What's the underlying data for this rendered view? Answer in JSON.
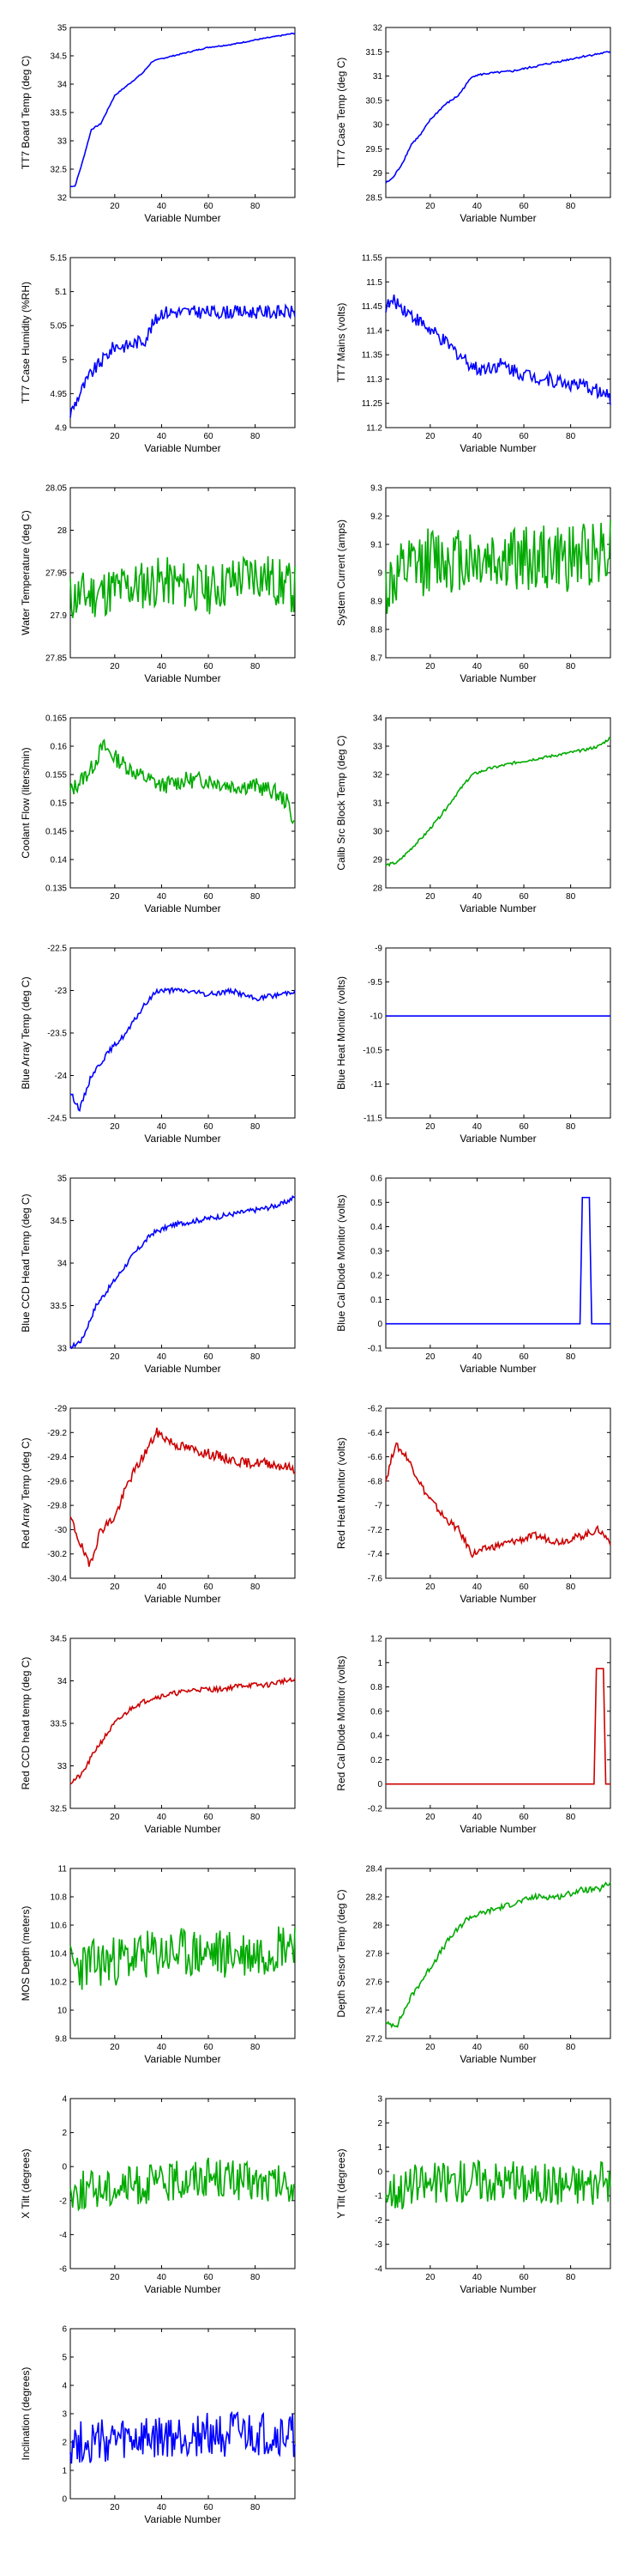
{
  "colors": {
    "blue": "#0000ff",
    "green": "#00aa00",
    "red": "#cc0000"
  },
  "x_range": [
    1,
    97
  ],
  "x_ticks": [
    20,
    40,
    60,
    80
  ],
  "chart_data": [
    {
      "type": "line",
      "ylabel": "TT7 Board Temp (deg C)",
      "xlabel": "Variable Number",
      "ylim": [
        32,
        35
      ],
      "yticks": [
        32,
        32.5,
        33,
        33.5,
        34,
        34.5,
        35
      ],
      "color": "blue",
      "anchors": [
        [
          1,
          32.2
        ],
        [
          3,
          32.2
        ],
        [
          6,
          32.6
        ],
        [
          10,
          33.2
        ],
        [
          14,
          33.3
        ],
        [
          20,
          33.8
        ],
        [
          26,
          34.0
        ],
        [
          32,
          34.2
        ],
        [
          36,
          34.4
        ],
        [
          40,
          34.45
        ],
        [
          50,
          34.55
        ],
        [
          60,
          34.65
        ],
        [
          70,
          34.7
        ],
        [
          80,
          34.78
        ],
        [
          90,
          34.85
        ],
        [
          97,
          34.9
        ]
      ],
      "noise": 0.01
    },
    {
      "type": "line",
      "ylabel": "TT7 Case Temp (deg C)",
      "xlabel": "Variable Number",
      "ylim": [
        28.5,
        32
      ],
      "yticks": [
        28.5,
        29,
        29.5,
        30,
        30.5,
        31,
        31.5,
        32
      ],
      "color": "blue",
      "anchors": [
        [
          1,
          28.8
        ],
        [
          4,
          28.9
        ],
        [
          8,
          29.2
        ],
        [
          12,
          29.6
        ],
        [
          16,
          29.8
        ],
        [
          20,
          30.1
        ],
        [
          26,
          30.4
        ],
        [
          32,
          30.6
        ],
        [
          38,
          31.0
        ],
        [
          44,
          31.05
        ],
        [
          55,
          31.1
        ],
        [
          65,
          31.2
        ],
        [
          75,
          31.3
        ],
        [
          85,
          31.4
        ],
        [
          97,
          31.5
        ]
      ],
      "noise": 0.02
    },
    {
      "type": "line",
      "ylabel": "TT7 Case Humidity (%RH)",
      "xlabel": "Variable Number",
      "ylim": [
        4.9,
        5.15
      ],
      "yticks": [
        4.9,
        4.95,
        5,
        5.05,
        5.1,
        5.15
      ],
      "color": "blue",
      "anchors": [
        [
          1,
          4.92
        ],
        [
          5,
          4.95
        ],
        [
          10,
          4.98
        ],
        [
          15,
          5.0
        ],
        [
          20,
          5.02
        ],
        [
          25,
          5.02
        ],
        [
          33,
          5.03
        ],
        [
          36,
          5.05
        ],
        [
          40,
          5.07
        ],
        [
          50,
          5.07
        ],
        [
          60,
          5.07
        ],
        [
          70,
          5.07
        ],
        [
          80,
          5.07
        ],
        [
          90,
          5.07
        ],
        [
          97,
          5.07
        ]
      ],
      "noise": 0.01
    },
    {
      "type": "line",
      "ylabel": "TT7 Mains (volts)",
      "xlabel": "Variable Number",
      "ylim": [
        11.2,
        11.55
      ],
      "yticks": [
        11.2,
        11.25,
        11.3,
        11.35,
        11.4,
        11.45,
        11.5,
        11.55
      ],
      "color": "blue",
      "anchors": [
        [
          1,
          11.45
        ],
        [
          5,
          11.46
        ],
        [
          10,
          11.44
        ],
        [
          15,
          11.42
        ],
        [
          20,
          11.4
        ],
        [
          25,
          11.38
        ],
        [
          30,
          11.36
        ],
        [
          35,
          11.34
        ],
        [
          40,
          11.32
        ],
        [
          50,
          11.33
        ],
        [
          60,
          11.31
        ],
        [
          70,
          11.3
        ],
        [
          80,
          11.29
        ],
        [
          90,
          11.28
        ],
        [
          97,
          11.26
        ]
      ],
      "noise": 0.015
    },
    {
      "type": "line",
      "ylabel": "Water Temperature (deg C)",
      "xlabel": "Variable Number",
      "ylim": [
        27.85,
        28.05
      ],
      "yticks": [
        27.85,
        27.9,
        27.95,
        28,
        28.05
      ],
      "color": "green",
      "anchors": [
        [
          1,
          27.92
        ],
        [
          20,
          27.93
        ],
        [
          40,
          27.94
        ],
        [
          60,
          27.93
        ],
        [
          80,
          27.95
        ],
        [
          97,
          27.93
        ]
      ],
      "noise": 0.03
    },
    {
      "type": "line",
      "ylabel": "System Current (amps)",
      "xlabel": "Variable Number",
      "ylim": [
        8.7,
        9.3
      ],
      "yticks": [
        8.7,
        8.8,
        8.9,
        9,
        9.1,
        9.2,
        9.3
      ],
      "color": "green",
      "anchors": [
        [
          1,
          8.95
        ],
        [
          20,
          9.05
        ],
        [
          40,
          9.05
        ],
        [
          60,
          9.05
        ],
        [
          80,
          9.05
        ],
        [
          97,
          9.1
        ]
      ],
      "noise": 0.12
    },
    {
      "type": "line",
      "ylabel": "Coolant Flow (liters/min)",
      "xlabel": "Variable Number",
      "ylim": [
        0.135,
        0.165
      ],
      "yticks": [
        0.135,
        0.14,
        0.145,
        0.15,
        0.155,
        0.16,
        0.165
      ],
      "color": "green",
      "anchors": [
        [
          1,
          0.152
        ],
        [
          10,
          0.156
        ],
        [
          15,
          0.16
        ],
        [
          20,
          0.158
        ],
        [
          30,
          0.155
        ],
        [
          40,
          0.153
        ],
        [
          50,
          0.154
        ],
        [
          60,
          0.154
        ],
        [
          70,
          0.153
        ],
        [
          80,
          0.153
        ],
        [
          88,
          0.152
        ],
        [
          94,
          0.15
        ],
        [
          97,
          0.146
        ]
      ],
      "noise": 0.0015
    },
    {
      "type": "line",
      "ylabel": "Calib Src Block Temp (deg C)",
      "xlabel": "Variable Number",
      "ylim": [
        28,
        34
      ],
      "yticks": [
        28,
        29,
        30,
        31,
        32,
        33,
        34
      ],
      "color": "green",
      "anchors": [
        [
          1,
          28.8
        ],
        [
          6,
          28.9
        ],
        [
          12,
          29.4
        ],
        [
          18,
          29.9
        ],
        [
          25,
          30.6
        ],
        [
          32,
          31.4
        ],
        [
          38,
          32.0
        ],
        [
          45,
          32.2
        ],
        [
          55,
          32.4
        ],
        [
          65,
          32.55
        ],
        [
          75,
          32.7
        ],
        [
          85,
          32.85
        ],
        [
          92,
          33.0
        ],
        [
          97,
          33.3
        ]
      ],
      "noise": 0.05
    },
    {
      "type": "line",
      "ylabel": "Blue Array Temp (deg C)",
      "xlabel": "Variable Number",
      "ylim": [
        -24.5,
        -22.5
      ],
      "yticks": [
        -24.5,
        -24,
        -23.5,
        -23,
        -22.5
      ],
      "color": "blue",
      "anchors": [
        [
          1,
          -24.2
        ],
        [
          5,
          -24.4
        ],
        [
          10,
          -24.0
        ],
        [
          18,
          -23.7
        ],
        [
          25,
          -23.5
        ],
        [
          32,
          -23.2
        ],
        [
          38,
          -23.0
        ],
        [
          50,
          -23.0
        ],
        [
          60,
          -23.05
        ],
        [
          70,
          -23.0
        ],
        [
          80,
          -23.1
        ],
        [
          90,
          -23.05
        ],
        [
          97,
          -23.0
        ]
      ],
      "noise": 0.03
    },
    {
      "type": "line",
      "ylabel": "Blue Heat Monitor (volts)",
      "xlabel": "Variable Number",
      "ylim": [
        -11.5,
        -9
      ],
      "yticks": [
        -11.5,
        -11,
        -10.5,
        -10,
        -9.5,
        -9
      ],
      "color": "blue",
      "anchors": [
        [
          1,
          -10
        ],
        [
          97,
          -10
        ]
      ],
      "noise": 0
    },
    {
      "type": "line",
      "ylabel": "Blue CCD Head Temp (deg C)",
      "xlabel": "Variable Number",
      "ylim": [
        33,
        35
      ],
      "yticks": [
        33,
        33.5,
        34,
        34.5,
        35
      ],
      "color": "blue",
      "anchors": [
        [
          1,
          33.0
        ],
        [
          6,
          33.1
        ],
        [
          12,
          33.5
        ],
        [
          20,
          33.8
        ],
        [
          28,
          34.1
        ],
        [
          36,
          34.35
        ],
        [
          45,
          34.45
        ],
        [
          55,
          34.5
        ],
        [
          65,
          34.55
        ],
        [
          75,
          34.6
        ],
        [
          85,
          34.65
        ],
        [
          92,
          34.7
        ],
        [
          97,
          34.78
        ]
      ],
      "noise": 0.03
    },
    {
      "type": "line",
      "ylabel": "Blue Cal Diode Monitor (volts)",
      "xlabel": "Variable Number",
      "ylim": [
        -0.1,
        0.6
      ],
      "yticks": [
        -0.1,
        0,
        0.1,
        0.2,
        0.3,
        0.4,
        0.5,
        0.6
      ],
      "color": "blue",
      "anchors": [
        [
          1,
          0
        ],
        [
          84,
          0
        ],
        [
          85,
          0.52
        ],
        [
          88,
          0.52
        ],
        [
          89,
          0
        ],
        [
          97,
          0
        ]
      ],
      "noise": 0
    },
    {
      "type": "line",
      "ylabel": "Red Array Temp (deg C)",
      "xlabel": "Variable Number",
      "ylim": [
        -30.4,
        -29
      ],
      "yticks": [
        -30.4,
        -30.2,
        -30,
        -29.8,
        -29.6,
        -29.4,
        -29.2,
        -29
      ],
      "color": "red",
      "anchors": [
        [
          1,
          -29.9
        ],
        [
          5,
          -30.1
        ],
        [
          9,
          -30.3
        ],
        [
          14,
          -30.0
        ],
        [
          20,
          -29.9
        ],
        [
          26,
          -29.6
        ],
        [
          32,
          -29.4
        ],
        [
          38,
          -29.2
        ],
        [
          46,
          -29.3
        ],
        [
          55,
          -29.35
        ],
        [
          65,
          -29.4
        ],
        [
          75,
          -29.45
        ],
        [
          85,
          -29.45
        ],
        [
          97,
          -29.5
        ]
      ],
      "noise": 0.04
    },
    {
      "type": "line",
      "ylabel": "Red Heat Monitor (volts)",
      "xlabel": "Variable Number",
      "ylim": [
        -7.6,
        -6.2
      ],
      "yticks": [
        -7.6,
        -7.4,
        -7.2,
        -7,
        -6.8,
        -6.6,
        -6.4,
        -6.2
      ],
      "color": "red",
      "anchors": [
        [
          1,
          -6.8
        ],
        [
          5,
          -6.5
        ],
        [
          10,
          -6.6
        ],
        [
          18,
          -6.9
        ],
        [
          26,
          -7.1
        ],
        [
          32,
          -7.2
        ],
        [
          38,
          -7.4
        ],
        [
          45,
          -7.35
        ],
        [
          55,
          -7.3
        ],
        [
          65,
          -7.25
        ],
        [
          75,
          -7.3
        ],
        [
          85,
          -7.25
        ],
        [
          92,
          -7.2
        ],
        [
          97,
          -7.3
        ]
      ],
      "noise": 0.03
    },
    {
      "type": "line",
      "ylabel": "Red CCD head temp (deg C)",
      "xlabel": "Variable Number",
      "ylim": [
        32.5,
        34.5
      ],
      "yticks": [
        32.5,
        33,
        33.5,
        34,
        34.5
      ],
      "color": "red",
      "anchors": [
        [
          1,
          32.8
        ],
        [
          6,
          32.9
        ],
        [
          12,
          33.2
        ],
        [
          20,
          33.5
        ],
        [
          28,
          33.7
        ],
        [
          36,
          33.8
        ],
        [
          45,
          33.85
        ],
        [
          55,
          33.9
        ],
        [
          65,
          33.9
        ],
        [
          75,
          33.95
        ],
        [
          85,
          33.95
        ],
        [
          92,
          34.0
        ],
        [
          97,
          34.0
        ]
      ],
      "noise": 0.03
    },
    {
      "type": "line",
      "ylabel": "Red Cal Diode Monitor (volts)",
      "xlabel": "Variable Number",
      "ylim": [
        -0.2,
        1.2
      ],
      "yticks": [
        -0.2,
        0,
        0.2,
        0.4,
        0.6,
        0.8,
        1,
        1.2
      ],
      "color": "red",
      "anchors": [
        [
          1,
          0
        ],
        [
          90,
          0
        ],
        [
          91,
          0.95
        ],
        [
          94,
          0.95
        ],
        [
          95,
          0
        ],
        [
          97,
          0
        ]
      ],
      "noise": 0
    },
    {
      "type": "line",
      "ylabel": "MOS Depth (meters)",
      "xlabel": "Variable Number",
      "ylim": [
        9.8,
        11
      ],
      "yticks": [
        9.8,
        10,
        10.2,
        10.4,
        10.6,
        10.8,
        11
      ],
      "color": "green",
      "anchors": [
        [
          1,
          10.3
        ],
        [
          20,
          10.35
        ],
        [
          40,
          10.4
        ],
        [
          60,
          10.4
        ],
        [
          80,
          10.4
        ],
        [
          97,
          10.5
        ]
      ],
      "noise": 0.18
    },
    {
      "type": "line",
      "ylabel": "Depth Sensor Temp (deg C)",
      "xlabel": "Variable Number",
      "ylim": [
        27.2,
        28.4
      ],
      "yticks": [
        27.2,
        27.4,
        27.6,
        27.8,
        28,
        28.2,
        28.4
      ],
      "color": "green",
      "anchors": [
        [
          1,
          27.3
        ],
        [
          6,
          27.3
        ],
        [
          12,
          27.5
        ],
        [
          20,
          27.7
        ],
        [
          28,
          27.9
        ],
        [
          36,
          28.05
        ],
        [
          45,
          28.1
        ],
        [
          55,
          28.15
        ],
        [
          65,
          28.2
        ],
        [
          75,
          28.2
        ],
        [
          85,
          28.25
        ],
        [
          92,
          28.25
        ],
        [
          97,
          28.3
        ]
      ],
      "noise": 0.02
    },
    {
      "type": "line",
      "ylabel": "X Tilt (degrees)",
      "xlabel": "Variable Number",
      "ylim": [
        -6,
        4
      ],
      "yticks": [
        -6,
        -4,
        -2,
        0,
        2,
        4
      ],
      "color": "green",
      "anchors": [
        [
          1,
          -1.5
        ],
        [
          20,
          -1.2
        ],
        [
          40,
          -1.0
        ],
        [
          60,
          -0.5
        ],
        [
          80,
          -1.0
        ],
        [
          97,
          -1.2
        ]
      ],
      "noise": 1.2
    },
    {
      "type": "line",
      "ylabel": "Y Tilt (degrees)",
      "xlabel": "Variable Number",
      "ylim": [
        -4,
        3
      ],
      "yticks": [
        -4,
        -3,
        -2,
        -1,
        0,
        1,
        2,
        3
      ],
      "color": "green",
      "anchors": [
        [
          1,
          -0.8
        ],
        [
          20,
          -0.5
        ],
        [
          40,
          -0.3
        ],
        [
          60,
          -0.5
        ],
        [
          80,
          -0.5
        ],
        [
          97,
          -0.5
        ]
      ],
      "noise": 0.9
    },
    {
      "type": "line",
      "ylabel": "Inclination (degrees)",
      "xlabel": "Variable Number",
      "ylim": [
        0,
        6
      ],
      "yticks": [
        0,
        1,
        2,
        3,
        4,
        5,
        6
      ],
      "color": "blue",
      "anchors": [
        [
          1,
          2.0
        ],
        [
          20,
          2.0
        ],
        [
          40,
          2.1
        ],
        [
          60,
          2.3
        ],
        [
          80,
          2.2
        ],
        [
          97,
          2.2
        ]
      ],
      "noise": 0.8
    }
  ]
}
